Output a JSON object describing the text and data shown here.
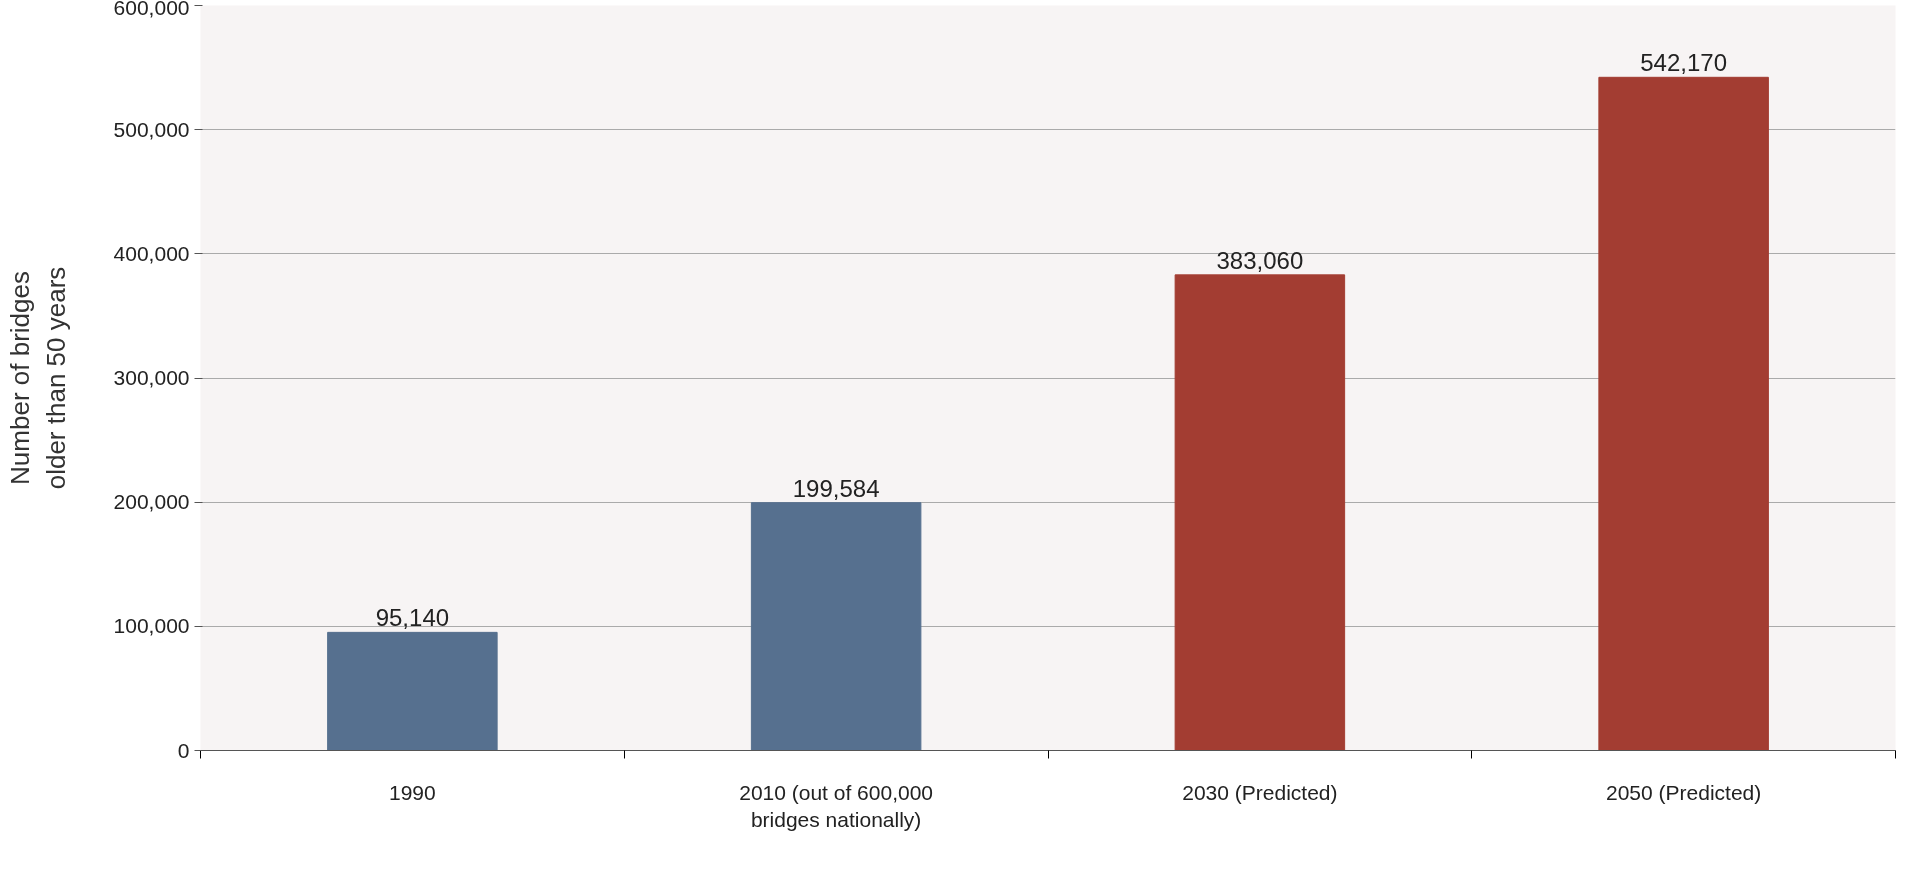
{
  "chart_data": {
    "type": "bar",
    "ylabel": "Number of bridges older than 50 years",
    "categories": [
      "1990",
      "2010 (out of 600,000 bridges nationally)",
      "2030 (Predicted)",
      "2050 (Predicted)"
    ],
    "values": [
      95140,
      199584,
      383060,
      542170
    ],
    "colors": [
      "#56708f",
      "#56708f",
      "#a33d32",
      "#a33d32"
    ],
    "ylim": [
      0,
      600000
    ],
    "yticks": [
      {
        "value": 0,
        "label": "0"
      },
      {
        "value": 100000,
        "label": "100,000"
      },
      {
        "value": 200000,
        "label": "200,000"
      },
      {
        "value": 300000,
        "label": "300,000"
      },
      {
        "value": 400000,
        "label": "400,000"
      },
      {
        "value": 500000,
        "label": "500,000"
      },
      {
        "value": 600000,
        "label": "600,000"
      }
    ],
    "value_labels": [
      "95,140",
      "199,584",
      "383,060",
      "542,170"
    ],
    "grid": "y"
  }
}
